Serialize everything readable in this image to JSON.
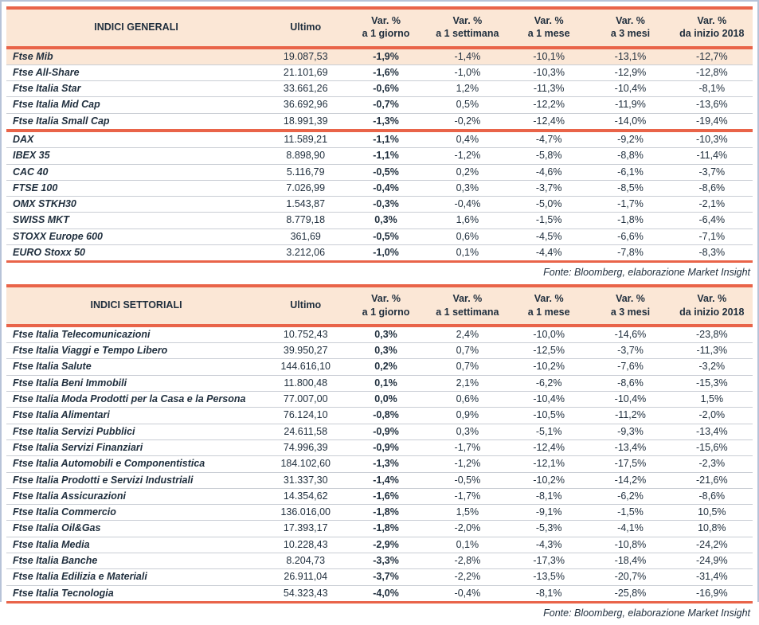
{
  "columns": {
    "ultimo": "Ultimo",
    "vars": [
      {
        "l1": "Var. %",
        "l2": "a 1 giorno"
      },
      {
        "l1": "Var. %",
        "l2": "a 1 settimana"
      },
      {
        "l1": "Var. %",
        "l2": "a 1 mese"
      },
      {
        "l1": "Var. %",
        "l2": "a 3 mesi"
      },
      {
        "l1": "Var. %",
        "l2": "da inizio 2018"
      }
    ]
  },
  "source_note": "Fonte: Bloomberg, elaborazione Market Insight",
  "general": {
    "title": "INDICI GENERALI",
    "groups": [
      {
        "rows": [
          {
            "name": "Ftse Mib",
            "ultimo": "19.087,53",
            "d1": "-1,9%",
            "w1": "-1,4%",
            "m1": "-10,1%",
            "m3": "-13,1%",
            "ytd": "-12,7%",
            "highlight": true
          },
          {
            "name": "Ftse All-Share",
            "ultimo": "21.101,69",
            "d1": "-1,6%",
            "w1": "-1,0%",
            "m1": "-10,3%",
            "m3": "-12,9%",
            "ytd": "-12,8%"
          },
          {
            "name": "Ftse Italia Star",
            "ultimo": "33.661,26",
            "d1": "-0,6%",
            "w1": "1,2%",
            "m1": "-11,3%",
            "m3": "-10,4%",
            "ytd": "-8,1%"
          },
          {
            "name": "Ftse Italia Mid Cap",
            "ultimo": "36.692,96",
            "d1": "-0,7%",
            "w1": "0,5%",
            "m1": "-12,2%",
            "m3": "-11,9%",
            "ytd": "-13,6%"
          },
          {
            "name": "Ftse Italia Small Cap",
            "ultimo": "18.991,39",
            "d1": "-1,3%",
            "w1": "-0,2%",
            "m1": "-12,4%",
            "m3": "-14,0%",
            "ytd": "-19,4%"
          }
        ]
      },
      {
        "rows": [
          {
            "name": "DAX",
            "ultimo": "11.589,21",
            "d1": "-1,1%",
            "w1": "0,4%",
            "m1": "-4,7%",
            "m3": "-9,2%",
            "ytd": "-10,3%"
          },
          {
            "name": "IBEX 35",
            "ultimo": "8.898,90",
            "d1": "-1,1%",
            "w1": "-1,2%",
            "m1": "-5,8%",
            "m3": "-8,8%",
            "ytd": "-11,4%"
          },
          {
            "name": "CAC 40",
            "ultimo": "5.116,79",
            "d1": "-0,5%",
            "w1": "0,2%",
            "m1": "-4,6%",
            "m3": "-6,1%",
            "ytd": "-3,7%"
          },
          {
            "name": "FTSE 100",
            "ultimo": "7.026,99",
            "d1": "-0,4%",
            "w1": "0,3%",
            "m1": "-3,7%",
            "m3": "-8,5%",
            "ytd": "-8,6%"
          },
          {
            "name": "OMX STKH30",
            "ultimo": "1.543,87",
            "d1": "-0,3%",
            "w1": "-0,4%",
            "m1": "-5,0%",
            "m3": "-1,7%",
            "ytd": "-2,1%"
          },
          {
            "name": "SWISS MKT",
            "ultimo": "8.779,18",
            "d1": "0,3%",
            "w1": "1,6%",
            "m1": "-1,5%",
            "m3": "-1,8%",
            "ytd": "-6,4%"
          },
          {
            "name": "STOXX Europe 600",
            "ultimo": "361,69",
            "d1": "-0,5%",
            "w1": "0,6%",
            "m1": "-4,5%",
            "m3": "-6,6%",
            "ytd": "-7,1%"
          },
          {
            "name": "EURO Stoxx 50",
            "ultimo": "3.212,06",
            "d1": "-1,0%",
            "w1": "0,1%",
            "m1": "-4,4%",
            "m3": "-7,8%",
            "ytd": "-8,3%"
          }
        ]
      }
    ]
  },
  "sectoral": {
    "title": "INDICI SETTORIALI",
    "rows": [
      {
        "name": "Ftse Italia Telecomunicazioni",
        "ultimo": "10.752,43",
        "d1": "0,3%",
        "w1": "2,4%",
        "m1": "-10,0%",
        "m3": "-14,6%",
        "ytd": "-23,8%"
      },
      {
        "name": "Ftse Italia Viaggi e Tempo Libero",
        "ultimo": "39.950,27",
        "d1": "0,3%",
        "w1": "0,7%",
        "m1": "-12,5%",
        "m3": "-3,7%",
        "ytd": "-11,3%"
      },
      {
        "name": "Ftse Italia Salute",
        "ultimo": "144.616,10",
        "d1": "0,2%",
        "w1": "0,7%",
        "m1": "-10,2%",
        "m3": "-7,6%",
        "ytd": "-3,2%"
      },
      {
        "name": "Ftse Italia Beni Immobili",
        "ultimo": "11.800,48",
        "d1": "0,1%",
        "w1": "2,1%",
        "m1": "-6,2%",
        "m3": "-8,6%",
        "ytd": "-15,3%"
      },
      {
        "name": "Ftse Italia Moda Prodotti per la Casa e la Persona",
        "ultimo": "77.007,00",
        "d1": "0,0%",
        "w1": "0,6%",
        "m1": "-10,4%",
        "m3": "-10,4%",
        "ytd": "1,5%"
      },
      {
        "name": "Ftse Italia Alimentari",
        "ultimo": "76.124,10",
        "d1": "-0,8%",
        "w1": "0,9%",
        "m1": "-10,5%",
        "m3": "-11,2%",
        "ytd": "-2,0%"
      },
      {
        "name": "Ftse Italia Servizi Pubblici",
        "ultimo": "24.611,58",
        "d1": "-0,9%",
        "w1": "0,3%",
        "m1": "-5,1%",
        "m3": "-9,3%",
        "ytd": "-13,4%"
      },
      {
        "name": "Ftse Italia Servizi Finanziari",
        "ultimo": "74.996,39",
        "d1": "-0,9%",
        "w1": "-1,7%",
        "m1": "-12,4%",
        "m3": "-13,4%",
        "ytd": "-15,6%"
      },
      {
        "name": "Ftse Italia Automobili e Componentistica",
        "ultimo": "184.102,60",
        "d1": "-1,3%",
        "w1": "-1,2%",
        "m1": "-12,1%",
        "m3": "-17,5%",
        "ytd": "-2,3%"
      },
      {
        "name": "Ftse Italia Prodotti e Servizi Industriali",
        "ultimo": "31.337,30",
        "d1": "-1,4%",
        "w1": "-0,5%",
        "m1": "-10,2%",
        "m3": "-14,2%",
        "ytd": "-21,6%"
      },
      {
        "name": "Ftse Italia Assicurazioni",
        "ultimo": "14.354,62",
        "d1": "-1,6%",
        "w1": "-1,7%",
        "m1": "-8,1%",
        "m3": "-6,2%",
        "ytd": "-8,6%"
      },
      {
        "name": "Ftse Italia Commercio",
        "ultimo": "136.016,00",
        "d1": "-1,8%",
        "w1": "1,5%",
        "m1": "-9,1%",
        "m3": "-1,5%",
        "ytd": "10,5%"
      },
      {
        "name": "Ftse Italia Oil&Gas",
        "ultimo": "17.393,17",
        "d1": "-1,8%",
        "w1": "-2,0%",
        "m1": "-5,3%",
        "m3": "-4,1%",
        "ytd": "10,8%"
      },
      {
        "name": "Ftse Italia Media",
        "ultimo": "10.228,43",
        "d1": "-2,9%",
        "w1": "0,1%",
        "m1": "-4,3%",
        "m3": "-10,8%",
        "ytd": "-24,2%"
      },
      {
        "name": "Ftse Italia Banche",
        "ultimo": "8.204,73",
        "d1": "-3,3%",
        "w1": "-2,8%",
        "m1": "-17,3%",
        "m3": "-18,4%",
        "ytd": "-24,9%"
      },
      {
        "name": "Ftse Italia Edilizia e Materiali",
        "ultimo": "26.911,04",
        "d1": "-3,7%",
        "w1": "-2,2%",
        "m1": "-13,5%",
        "m3": "-20,7%",
        "ytd": "-31,4%"
      },
      {
        "name": "Ftse Italia Tecnologia",
        "ultimo": "54.323,43",
        "d1": "-4,0%",
        "w1": "-0,4%",
        "m1": "-8,1%",
        "m3": "-25,8%",
        "ytd": "-16,9%"
      }
    ]
  },
  "colors": {
    "accent_red": "#e96449",
    "header_bg": "#fbe7d6",
    "text": "#1f2e3d",
    "frame_border": "#b7c3d8",
    "row_divider": "#c9cdd4"
  }
}
